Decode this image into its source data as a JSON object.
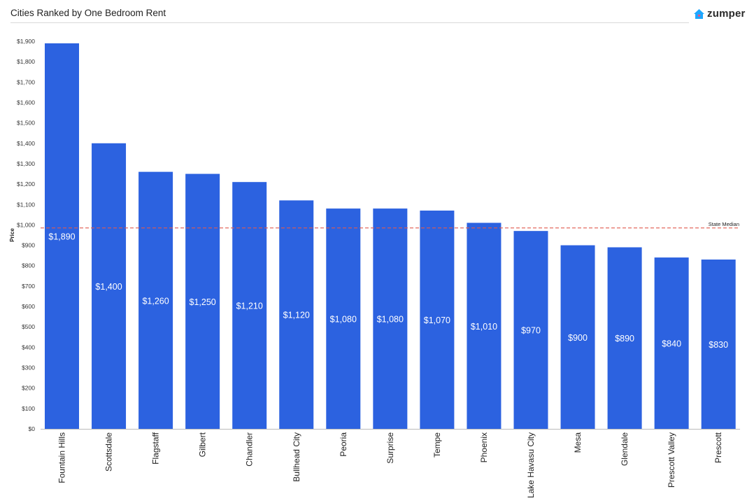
{
  "header": {
    "title": "Cities Ranked by One Bedroom Rent",
    "brand": "zumper",
    "brand_icon": "house-icon",
    "brand_color": "#1ea7ff"
  },
  "chart_data": {
    "type": "bar",
    "title": "Cities Ranked by One Bedroom Rent",
    "xlabel": "",
    "ylabel": "Price",
    "ylim": [
      0,
      1900
    ],
    "yticks": [
      0,
      100,
      200,
      300,
      400,
      500,
      600,
      700,
      800,
      900,
      1000,
      1100,
      1200,
      1300,
      1400,
      1500,
      1600,
      1700,
      1800,
      1900
    ],
    "ytick_labels": [
      "$0",
      "$100",
      "$200",
      "$300",
      "$400",
      "$500",
      "$600",
      "$700",
      "$800",
      "$900",
      "$1,000",
      "$1,100",
      "$1,200",
      "$1,300",
      "$1,400",
      "$1,500",
      "$1,600",
      "$1,700",
      "$1,800",
      "$1,900"
    ],
    "categories": [
      "Fountain Hills",
      "Scottsdale",
      "Flagstaff",
      "Gilbert",
      "Chandler",
      "Bullhead City",
      "Peoria",
      "Surprise",
      "Tempe",
      "Phoenix",
      "Lake Havasu City",
      "Mesa",
      "Glendale",
      "Prescott Valley",
      "Prescott"
    ],
    "values": [
      1890,
      1400,
      1260,
      1250,
      1210,
      1120,
      1080,
      1080,
      1070,
      1010,
      970,
      900,
      890,
      840,
      830
    ],
    "data_labels": [
      "$1,890",
      "$1,400",
      "$1,260",
      "$1,250",
      "$1,210",
      "$1,120",
      "$1,080",
      "$1,080",
      "$1,070",
      "$1,010",
      "$970",
      "$900",
      "$890",
      "$840",
      "$830"
    ],
    "bar_color": "#2c62e0",
    "grid": false,
    "reference_line": {
      "label": "State Median",
      "value": 985,
      "color": "#e05a4f",
      "style": "dashed"
    }
  }
}
